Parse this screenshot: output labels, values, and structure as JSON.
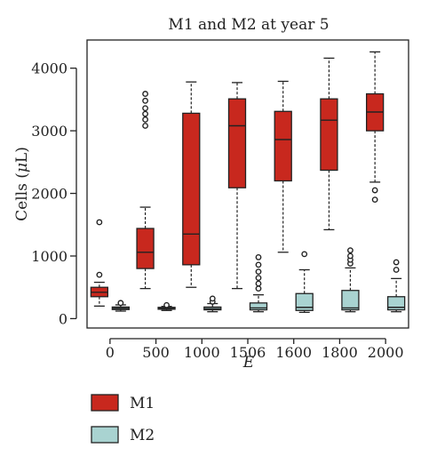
{
  "chart_data": {
    "type": "box",
    "title": "M1 and M2 at year 5",
    "xlabel": "E",
    "ylabel": "Cells (μL)",
    "ylabel_parts": {
      "prefix": "Cells (",
      "mu": "μ",
      "unit": "L",
      "suffix": ")"
    },
    "categories": [
      "0",
      "500",
      "1000",
      "1506",
      "1600",
      "1800",
      "2000"
    ],
    "yticks": [
      0,
      1000,
      2000,
      3000,
      4000
    ],
    "ylim": [
      -150,
      4450
    ],
    "grid": false,
    "legend_position": "bottom-left",
    "series": [
      {
        "name": "M1",
        "color": "#c8281e",
        "boxes": [
          {
            "whislo": 200,
            "q1": 350,
            "med": 420,
            "q3": 500,
            "whishi": 580,
            "fliers": [
              700,
              1540
            ]
          },
          {
            "whislo": 480,
            "q1": 800,
            "med": 1060,
            "q3": 1440,
            "whishi": 1780,
            "fliers": [
              3080,
              3180,
              3270,
              3360,
              3480,
              3590
            ]
          },
          {
            "whislo": 500,
            "q1": 860,
            "med": 1350,
            "q3": 3280,
            "whishi": 3780,
            "fliers": []
          },
          {
            "whislo": 480,
            "q1": 2090,
            "med": 3080,
            "q3": 3510,
            "whishi": 3770,
            "fliers": []
          },
          {
            "whislo": 1060,
            "q1": 2200,
            "med": 2860,
            "q3": 3310,
            "whishi": 3790,
            "fliers": []
          },
          {
            "whislo": 1420,
            "q1": 2370,
            "med": 3170,
            "q3": 3510,
            "whishi": 4160,
            "fliers": []
          },
          {
            "whislo": 2180,
            "q1": 3000,
            "med": 3300,
            "q3": 3590,
            "whishi": 4260,
            "fliers": [
              1900,
              2050
            ]
          }
        ]
      },
      {
        "name": "M2",
        "color": "#a9d3d1",
        "boxes": [
          {
            "whislo": 120,
            "q1": 145,
            "med": 165,
            "q3": 185,
            "whishi": 220,
            "fliers": [
              250
            ]
          },
          {
            "whislo": 130,
            "q1": 150,
            "med": 165,
            "q3": 180,
            "whishi": 195,
            "fliers": [
              215
            ]
          },
          {
            "whislo": 110,
            "q1": 140,
            "med": 160,
            "q3": 185,
            "whishi": 240,
            "fliers": [
              270,
              320
            ]
          },
          {
            "whislo": 110,
            "q1": 140,
            "med": 170,
            "q3": 250,
            "whishi": 380,
            "fliers": [
              480,
              560,
              650,
              750,
              860,
              980
            ]
          },
          {
            "whislo": 100,
            "q1": 130,
            "med": 180,
            "q3": 400,
            "whishi": 780,
            "fliers": [
              1030
            ]
          },
          {
            "whislo": 110,
            "q1": 140,
            "med": 170,
            "q3": 450,
            "whishi": 810,
            "fliers": [
              880,
              940,
              1000,
              1090
            ]
          },
          {
            "whislo": 110,
            "q1": 140,
            "med": 180,
            "q3": 350,
            "whishi": 640,
            "fliers": [
              780,
              900
            ]
          }
        ]
      }
    ]
  }
}
